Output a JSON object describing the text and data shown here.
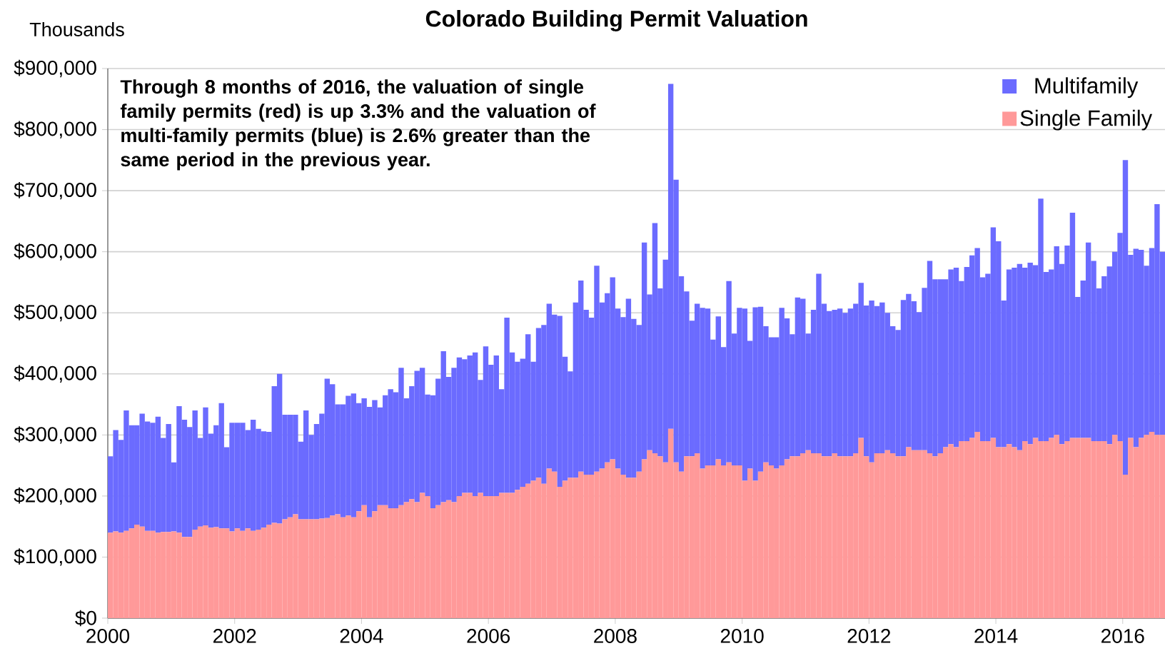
{
  "chart_data": {
    "type": "bar",
    "stacked": true,
    "title": "Colorado Building Permit Valuation",
    "ylabel": "Thousands",
    "annotations": [
      "Through 8 months of 2016, the valuation of single family permits (red) is up 3.3% and the valuation of multi-family permits (blue) is 2.6% greater than the same period in the previous year."
    ],
    "x": [
      "2000-01",
      "2000-02",
      "2000-03",
      "2000-04",
      "2000-05",
      "2000-06",
      "2000-07",
      "2000-08",
      "2000-09",
      "2000-10",
      "2000-11",
      "2000-12",
      "2001-01",
      "2001-02",
      "2001-03",
      "2001-04",
      "2001-05",
      "2001-06",
      "2001-07",
      "2001-08",
      "2001-09",
      "2001-10",
      "2001-11",
      "2001-12",
      "2002-01",
      "2002-02",
      "2002-03",
      "2002-04",
      "2002-05",
      "2002-06",
      "2002-07",
      "2002-08",
      "2002-09",
      "2002-10",
      "2002-11",
      "2002-12",
      "2003-01",
      "2003-02",
      "2003-03",
      "2003-04",
      "2003-05",
      "2003-06",
      "2003-07",
      "2003-08",
      "2003-09",
      "2003-10",
      "2003-11",
      "2003-12",
      "2004-01",
      "2004-02",
      "2004-03",
      "2004-04",
      "2004-05",
      "2004-06",
      "2004-07",
      "2004-08",
      "2004-09",
      "2004-10",
      "2004-11",
      "2004-12",
      "2005-01",
      "2005-02",
      "2005-03",
      "2005-04",
      "2005-05",
      "2005-06",
      "2005-07",
      "2005-08",
      "2005-09",
      "2005-10",
      "2005-11",
      "2005-12",
      "2006-01",
      "2006-02",
      "2006-03",
      "2006-04",
      "2006-05",
      "2006-06",
      "2006-07",
      "2006-08",
      "2006-09",
      "2006-10",
      "2006-11",
      "2006-12",
      "2007-01",
      "2007-02",
      "2007-03",
      "2007-04",
      "2007-05",
      "2007-06",
      "2007-07",
      "2007-08",
      "2007-09",
      "2007-10",
      "2007-11",
      "2007-12",
      "2008-01",
      "2008-02",
      "2008-03",
      "2008-04",
      "2008-05",
      "2008-06",
      "2008-07",
      "2008-08",
      "2008-09",
      "2008-10",
      "2008-11",
      "2008-12",
      "2009-01",
      "2009-02",
      "2009-03",
      "2009-04",
      "2009-05",
      "2009-06",
      "2009-07",
      "2009-08",
      "2009-09",
      "2009-10",
      "2009-11",
      "2009-12",
      "2010-01",
      "2010-02",
      "2010-03",
      "2010-04",
      "2010-05",
      "2010-06",
      "2010-07",
      "2010-08",
      "2010-09",
      "2010-10",
      "2010-11",
      "2010-12",
      "2011-01",
      "2011-02",
      "2011-03",
      "2011-04",
      "2011-05",
      "2011-06",
      "2011-07",
      "2011-08",
      "2011-09",
      "2011-10",
      "2011-11",
      "2011-12",
      "2012-01",
      "2012-02",
      "2012-03",
      "2012-04",
      "2012-05",
      "2012-06",
      "2012-07",
      "2012-08",
      "2012-09",
      "2012-10",
      "2012-11",
      "2012-12",
      "2013-01",
      "2013-02",
      "2013-03",
      "2013-04",
      "2013-05",
      "2013-06",
      "2013-07",
      "2013-08",
      "2013-09",
      "2013-10",
      "2013-11",
      "2013-12",
      "2014-01",
      "2014-02",
      "2014-03",
      "2014-04",
      "2014-05",
      "2014-06",
      "2014-07",
      "2014-08",
      "2014-09",
      "2014-10",
      "2014-11",
      "2014-12",
      "2015-01",
      "2015-02",
      "2015-03",
      "2015-04",
      "2015-05",
      "2015-06",
      "2015-07",
      "2015-08",
      "2015-09",
      "2015-10",
      "2015-11",
      "2015-12",
      "2016-01",
      "2016-02",
      "2016-03",
      "2016-04",
      "2016-05",
      "2016-06",
      "2016-07",
      "2016-08"
    ],
    "series": [
      {
        "name": "Single Family",
        "color": "#ff9999",
        "values": [
          140000,
          142000,
          140000,
          143000,
          147000,
          153000,
          150000,
          143000,
          143000,
          140000,
          141000,
          141000,
          142000,
          140000,
          133000,
          133000,
          145000,
          150000,
          152000,
          148000,
          149000,
          147000,
          147000,
          142000,
          147000,
          143000,
          147000,
          143000,
          145000,
          148000,
          153000,
          156000,
          155000,
          162000,
          165000,
          170000,
          162000,
          162000,
          162000,
          162000,
          163000,
          164000,
          168000,
          170000,
          165000,
          168000,
          165000,
          175000,
          185000,
          165000,
          175000,
          185000,
          185000,
          180000,
          180000,
          185000,
          190000,
          195000,
          190000,
          205000,
          200000,
          180000,
          185000,
          190000,
          193000,
          190000,
          200000,
          205000,
          205000,
          200000,
          205000,
          200000,
          200000,
          200000,
          205000,
          205000,
          205000,
          210000,
          215000,
          220000,
          225000,
          230000,
          220000,
          245000,
          240000,
          215000,
          225000,
          230000,
          230000,
          240000,
          235000,
          235000,
          240000,
          245000,
          255000,
          260000,
          245000,
          235000,
          230000,
          230000,
          240000,
          260000,
          275000,
          270000,
          265000,
          255000,
          310000,
          255000,
          240000,
          265000,
          265000,
          270000,
          245000,
          250000,
          250000,
          260000,
          250000,
          255000,
          250000,
          250000,
          225000,
          245000,
          225000,
          240000,
          255000,
          250000,
          245000,
          250000,
          260000,
          265000,
          265000,
          270000,
          275000,
          270000,
          270000,
          265000,
          265000,
          270000,
          265000,
          265000,
          265000,
          270000,
          295000,
          265000,
          255000,
          270000,
          270000,
          275000,
          270000,
          265000,
          265000,
          280000,
          275000,
          275000,
          275000,
          270000,
          265000,
          270000,
          280000,
          285000,
          280000,
          290000,
          290000,
          295000,
          305000,
          290000,
          290000,
          295000,
          280000,
          280000,
          285000,
          280000,
          275000,
          290000,
          285000,
          295000,
          290000,
          290000,
          295000,
          300000,
          285000,
          290000,
          295000,
          295000,
          295000,
          295000,
          290000,
          290000,
          290000,
          285000,
          300000,
          290000,
          235000,
          295000,
          280000,
          295000,
          300000,
          305000,
          300000,
          300000
        ]
      },
      {
        "name": "Multifamily",
        "color": "#6b6bff",
        "values": [
          125000,
          166000,
          152000,
          197000,
          169000,
          163000,
          185000,
          179000,
          177000,
          190000,
          154000,
          177000,
          113000,
          207000,
          192000,
          180000,
          195000,
          145000,
          193000,
          154000,
          167000,
          205000,
          133000,
          178000,
          173000,
          177000,
          161000,
          182000,
          165000,
          158000,
          152000,
          224000,
          245000,
          171000,
          168000,
          163000,
          127000,
          178000,
          138000,
          156000,
          172000,
          228000,
          215000,
          180000,
          185000,
          196000,
          203000,
          177000,
          175000,
          181000,
          182000,
          160000,
          180000,
          195000,
          190000,
          225000,
          170000,
          185000,
          215000,
          205000,
          166000,
          185000,
          207000,
          247000,
          202000,
          220000,
          227000,
          219000,
          225000,
          235000,
          185000,
          245000,
          215000,
          230000,
          170000,
          287000,
          230000,
          210000,
          210000,
          245000,
          195000,
          245000,
          260000,
          270000,
          257000,
          280000,
          203000,
          174000,
          287000,
          313000,
          270000,
          257000,
          337000,
          272000,
          277000,
          298000,
          262000,
          258000,
          293000,
          260000,
          240000,
          355000,
          255000,
          377000,
          275000,
          332000,
          565000,
          463000,
          320000,
          270000,
          222000,
          245000,
          263000,
          257000,
          206000,
          234000,
          194000,
          297000,
          216000,
          258000,
          282000,
          209000,
          284000,
          270000,
          223000,
          210000,
          215000,
          258000,
          231000,
          200000,
          260000,
          253000,
          191000,
          235000,
          294000,
          250000,
          238000,
          235000,
          242000,
          235000,
          242000,
          245000,
          254000,
          247000,
          265000,
          241000,
          247000,
          225000,
          208000,
          207000,
          256000,
          251000,
          244000,
          226000,
          266000,
          315000,
          290000,
          285000,
          275000,
          286000,
          294000,
          262000,
          285000,
          299000,
          301000,
          268000,
          274000,
          345000,
          337000,
          240000,
          286000,
          294000,
          305000,
          284000,
          297000,
          283000,
          397000,
          277000,
          276000,
          309000,
          295000,
          320000,
          369000,
          231000,
          258000,
          320000,
          295000,
          250000,
          270000,
          291000,
          300000,
          341000,
          515000,
          300000,
          325000,
          308000,
          277000,
          301000,
          378000,
          300000
        ]
      }
    ],
    "xlim": [
      "2000",
      "2016-09"
    ],
    "xticks": [
      "2000",
      "2002",
      "2004",
      "2006",
      "2008",
      "2010",
      "2012",
      "2014",
      "2016"
    ],
    "ylim": [
      0,
      900000
    ],
    "yticks": [
      {
        "value": 0,
        "label": "$0"
      },
      {
        "value": 100000,
        "label": "$100,000"
      },
      {
        "value": 200000,
        "label": "$200,000"
      },
      {
        "value": 300000,
        "label": "$300,000"
      },
      {
        "value": 400000,
        "label": "$400,000"
      },
      {
        "value": 500000,
        "label": "$500,000"
      },
      {
        "value": 600000,
        "label": "$600,000"
      },
      {
        "value": 700000,
        "label": "$700,000"
      },
      {
        "value": 800000,
        "label": "$800,000"
      },
      {
        "value": 900000,
        "label": "$900,000"
      }
    ],
    "grid": "y",
    "legend": "top right"
  }
}
